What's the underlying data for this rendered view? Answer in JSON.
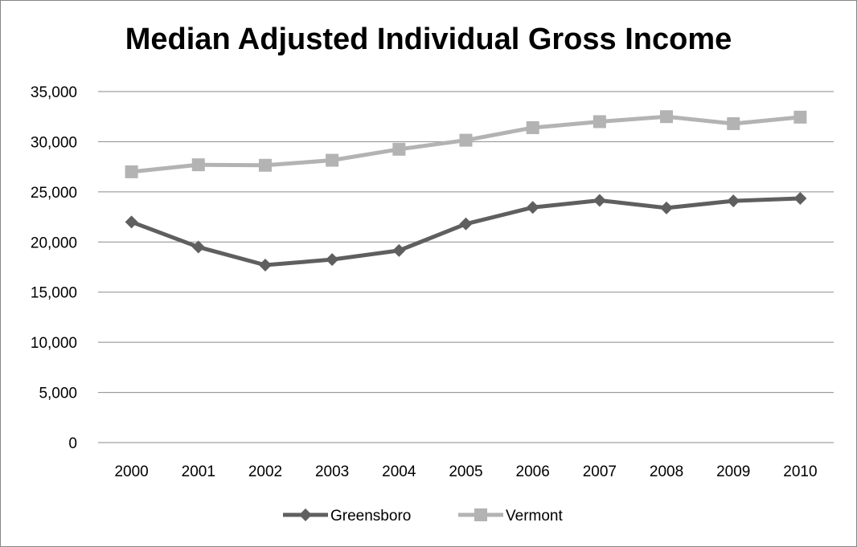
{
  "chart_data": {
    "type": "line",
    "title": "Median Adjusted Individual Gross Income",
    "xlabel": "",
    "ylabel": "",
    "categories": [
      "2000",
      "2001",
      "2002",
      "2003",
      "2004",
      "2005",
      "2006",
      "2007",
      "2008",
      "2009",
      "2010"
    ],
    "series": [
      {
        "name": "Greensboro",
        "color": "#5f5f5f",
        "marker": "diamond",
        "values": [
          22000,
          19500,
          17700,
          18250,
          19150,
          21800,
          23450,
          24150,
          23400,
          24100,
          24350
        ]
      },
      {
        "name": "Vermont",
        "color": "#b3b3b3",
        "marker": "square",
        "values": [
          27000,
          27700,
          27650,
          28150,
          29250,
          30150,
          31400,
          32000,
          32500,
          31800,
          32450
        ]
      }
    ],
    "ylim": [
      0,
      35000
    ],
    "yticks": [
      0,
      5000,
      10000,
      15000,
      20000,
      25000,
      30000,
      35000
    ],
    "ytick_labels": [
      "0",
      "5,000",
      "10,000",
      "15,000",
      "20,000",
      "25,000",
      "30,000",
      "35,000"
    ],
    "grid": true,
    "legend_position": "bottom"
  }
}
